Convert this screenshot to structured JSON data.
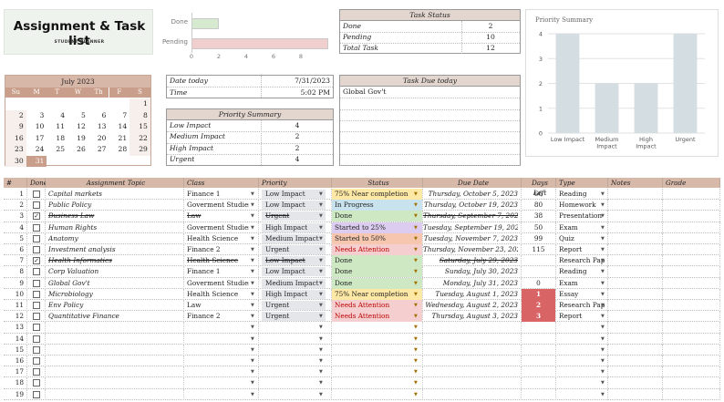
{
  "header": {
    "title": "Assignment & Task list",
    "subtitle": "STUDENT PLANNER"
  },
  "mini_chart": {
    "bars": [
      {
        "label": "Done",
        "value": 2,
        "color": "#d6ead0"
      },
      {
        "label": "Pending",
        "value": 10,
        "color": "#f2cfcf"
      }
    ],
    "ticks": [
      "0",
      "2",
      "4",
      "6",
      "8"
    ],
    "max": 10
  },
  "task_status": {
    "title": "Task Status",
    "rows": [
      {
        "label": "Done",
        "value": "2"
      },
      {
        "label": "Pending",
        "value": "10"
      },
      {
        "label": "Total Task",
        "value": "12"
      }
    ]
  },
  "calendar": {
    "title": "July 2023",
    "days": [
      "Su",
      "M",
      "T",
      "W",
      "Th",
      "F",
      "S"
    ],
    "weeks": [
      [
        "",
        "",
        "",
        "",
        "",
        "",
        "1"
      ],
      [
        "2",
        "3",
        "4",
        "5",
        "6",
        "7",
        "8"
      ],
      [
        "9",
        "10",
        "11",
        "12",
        "13",
        "14",
        "15"
      ],
      [
        "16",
        "17",
        "18",
        "19",
        "20",
        "21",
        "22"
      ],
      [
        "23",
        "24",
        "25",
        "26",
        "27",
        "28",
        "29"
      ],
      [
        "30",
        "31",
        "",
        "",
        "",
        "",
        ""
      ]
    ],
    "today": "31"
  },
  "info": {
    "date_label": "Date today",
    "date_value": "7/31/2023",
    "time_label": "Time",
    "time_value": "5:02 PM"
  },
  "priority_summary": {
    "title": "Priority Summary",
    "rows": [
      {
        "label": "Low Impact",
        "value": "4"
      },
      {
        "label": "Medium Impact",
        "value": "2"
      },
      {
        "label": "High Impact",
        "value": "2"
      },
      {
        "label": "Urgent",
        "value": "4"
      }
    ]
  },
  "task_due": {
    "title": "Task Due today",
    "items": [
      "Global Gov't"
    ]
  },
  "chart_data": {
    "type": "bar",
    "title": "Priority Summary",
    "categories": [
      "Low Impact",
      "Medium Impact",
      "High Impact",
      "Urgent"
    ],
    "category_lines": [
      [
        "Low Impact"
      ],
      [
        "Medium",
        "Impact"
      ],
      [
        "High",
        "Impact"
      ],
      [
        "Urgent"
      ]
    ],
    "values": [
      4,
      2,
      2,
      4
    ],
    "ylim": [
      0,
      4
    ],
    "yticks": [
      "0",
      "1",
      "2",
      "3",
      "4"
    ],
    "bar_color": "#d3dde2",
    "grid": true
  },
  "table": {
    "columns": [
      "#",
      "Done",
      "Assignment Topic",
      "Class",
      "Priority",
      "Status",
      "Due Date",
      "Days Left",
      "Type",
      "Notes",
      "Grade"
    ],
    "status_colors": {
      "75% Near completion": "#fde8a6",
      "In Progress": "#c9e3ee",
      "Done": "#cde8c3",
      "Started to 25%": "#dcccf0",
      "Started to 50%": "#f6c7ae",
      "Needs Attention": "#f5cfcf"
    },
    "days_left_red": "#d96466",
    "rows": [
      {
        "n": "1",
        "done": false,
        "topic": "Capital markets",
        "class": "Finance 1",
        "priority": "Low Impact",
        "status": "75% Near completion",
        "due": "Thursday, October 5, 2023",
        "days": "66",
        "type": "Reading"
      },
      {
        "n": "2",
        "done": false,
        "topic": "Public Policy",
        "class": "Goverment Studies",
        "priority": "Low Impact",
        "status": "In Progress",
        "due": "Thursday, October 19, 2023",
        "days": "80",
        "type": "Homework"
      },
      {
        "n": "3",
        "done": true,
        "topic": "Business Law",
        "class": "Law",
        "priority": "Urgent",
        "status": "Done",
        "due": "Thursday, September 7, 2023",
        "days": "38",
        "type": "Presentation"
      },
      {
        "n": "4",
        "done": false,
        "topic": "Human Rights",
        "class": "Goverment Studies",
        "priority": "High Impact",
        "status": "Started to 25%",
        "due": "Tuesday, September 19, 2023",
        "days": "50",
        "type": "Exam"
      },
      {
        "n": "5",
        "done": false,
        "topic": "Anatomy",
        "class": "Health Science",
        "priority": "Medium Impact",
        "status": "Started to 50%",
        "due": "Tuesday, November 7, 2023",
        "days": "99",
        "type": "Quiz"
      },
      {
        "n": "6",
        "done": false,
        "topic": "Investment analysis",
        "class": "Finance 2",
        "priority": "Urgent",
        "status": "Needs Attention",
        "due": "Thursday, November 23, 2023",
        "days": "115",
        "type": "Report"
      },
      {
        "n": "7",
        "done": true,
        "topic": "Health Informatics",
        "class": "Health Science",
        "priority": "Low Impact",
        "status": "Done",
        "due": "Saturday, July 29, 2023",
        "days": "",
        "type": "Research Pap"
      },
      {
        "n": "8",
        "done": false,
        "topic": "Corp Valuation",
        "class": "Finance 1",
        "priority": "Low Impact",
        "status": "Done",
        "due": "Sunday, July 30, 2023",
        "days": "",
        "type": "Reading"
      },
      {
        "n": "9",
        "done": false,
        "topic": "Global Gov't",
        "class": "Goverment Studies",
        "priority": "Medium Impact",
        "status": "Done",
        "due": "Monday, July 31, 2023",
        "days": "0",
        "type": "Exam"
      },
      {
        "n": "10",
        "done": false,
        "topic": "Microbiology",
        "class": "Health Science",
        "priority": "High Impact",
        "status": "75% Near completion",
        "due": "Tuesday, August 1, 2023",
        "days": "1",
        "type": "Essay"
      },
      {
        "n": "11",
        "done": false,
        "topic": "Env Policy",
        "class": "Law",
        "priority": "Urgent",
        "status": "Needs Attention",
        "due": "Wednesday, August 2, 2023",
        "days": "2",
        "type": "Research Pap"
      },
      {
        "n": "12",
        "done": false,
        "topic": "Quantitative Finance",
        "class": "Finance 2",
        "priority": "Urgent",
        "status": "Needs Attention",
        "due": "Thursday, August 3, 2023",
        "days": "3",
        "type": "Report"
      },
      {
        "n": "13",
        "done": false,
        "topic": "",
        "class": "",
        "priority": "",
        "status": "",
        "due": "",
        "days": "",
        "type": ""
      },
      {
        "n": "14",
        "done": false,
        "topic": "",
        "class": "",
        "priority": "",
        "status": "",
        "due": "",
        "days": "",
        "type": ""
      },
      {
        "n": "15",
        "done": false,
        "topic": "",
        "class": "",
        "priority": "",
        "status": "",
        "due": "",
        "days": "",
        "type": ""
      },
      {
        "n": "16",
        "done": false,
        "topic": "",
        "class": "",
        "priority": "",
        "status": "",
        "due": "",
        "days": "",
        "type": ""
      },
      {
        "n": "17",
        "done": false,
        "topic": "",
        "class": "",
        "priority": "",
        "status": "",
        "due": "",
        "days": "",
        "type": ""
      },
      {
        "n": "18",
        "done": false,
        "topic": "",
        "class": "",
        "priority": "",
        "status": "",
        "due": "",
        "days": "",
        "type": ""
      },
      {
        "n": "19",
        "done": false,
        "topic": "",
        "class": "",
        "priority": "",
        "status": "",
        "due": "",
        "days": "",
        "type": ""
      }
    ]
  }
}
